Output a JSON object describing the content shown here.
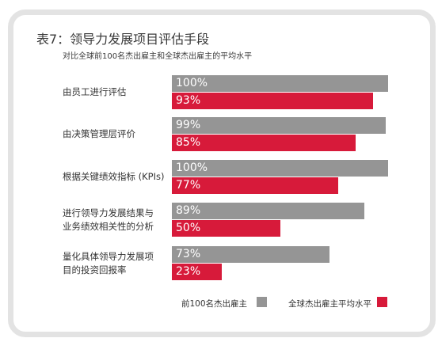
{
  "chart_data": {
    "type": "bar",
    "orientation": "horizontal",
    "title": "表7：领导力发展项目评估手段",
    "subtitle": "对比全球前100名杰出雇主和全球杰出雇主的平均水平",
    "categories": [
      "由员工进行评估",
      "由决策管理层评价",
      "根据关键绩效指标 (KPIs)",
      "进行领导力发展结果与业务绩效相关性的分析",
      "量化具体领导力发展项目的投资回报率"
    ],
    "category_lines": [
      [
        "由员工进行评估"
      ],
      [
        "由决策管理层评价"
      ],
      [
        "根据关键绩效指标 (KPIs)"
      ],
      [
        "进行领导力发展结果与",
        "业务绩效相关性的分析"
      ],
      [
        "量化具体领导力发展项",
        "目的投资回报率"
      ]
    ],
    "series": [
      {
        "name": "前100名杰出雇主",
        "color": "#959595",
        "values": [
          100,
          99,
          100,
          89,
          73
        ]
      },
      {
        "name": "全球杰出雇主平均水平",
        "color": "#d71a3a",
        "values": [
          93,
          85,
          77,
          50,
          23
        ]
      }
    ],
    "data_labels": [
      [
        "100%",
        "99%",
        "100%",
        "89%",
        "73%"
      ],
      [
        "93%",
        "85%",
        "77%",
        "50%",
        "23%"
      ]
    ],
    "xlim": [
      0,
      100
    ],
    "unit": "%",
    "grid": false,
    "legend": "bottom-right"
  }
}
